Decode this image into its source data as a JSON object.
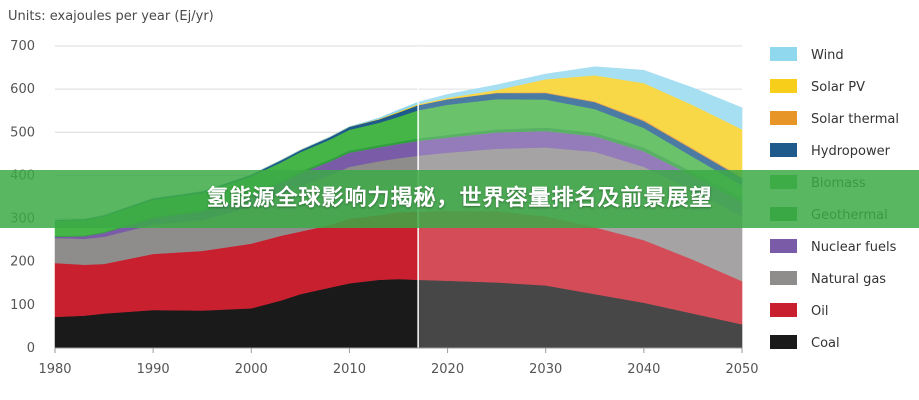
{
  "banner": {
    "text": "氢能源全球影响力揭秘，世界容量排名及前景展望"
  },
  "chart_data": {
    "type": "area",
    "title": "",
    "units_label": "Units: exajoules per year (Ej/yr)",
    "xlabel": "",
    "ylabel": "",
    "xlim": [
      1980,
      2050
    ],
    "ylim": [
      0,
      700
    ],
    "x_ticks": [
      "1980",
      "1990",
      "2000",
      "2010",
      "2020",
      "2030",
      "2040",
      "2050"
    ],
    "y_ticks": [
      "0",
      "100",
      "200",
      "300",
      "400",
      "500",
      "600",
      "700"
    ],
    "projection_start": 2017,
    "grid": true,
    "legend_position": "right",
    "x": [
      1980,
      1983,
      1985,
      1990,
      1995,
      2000,
      2003,
      2005,
      2008,
      2010,
      2013,
      2015,
      2017,
      2020,
      2025,
      2030,
      2035,
      2040,
      2045,
      2050
    ],
    "series": [
      {
        "name": "Coal",
        "color": "#1a1a1a",
        "values": [
          72,
          75,
          80,
          88,
          87,
          92,
          110,
          125,
          140,
          150,
          158,
          160,
          158,
          156,
          152,
          145,
          125,
          105,
          80,
          55
        ]
      },
      {
        "name": "Oil",
        "color": "#c8202f",
        "values": [
          125,
          118,
          115,
          130,
          138,
          150,
          150,
          145,
          145,
          150,
          150,
          155,
          158,
          162,
          165,
          160,
          155,
          145,
          125,
          100
        ]
      },
      {
        "name": "Natural gas",
        "color": "#8f8c8c",
        "values": [
          58,
          60,
          63,
          68,
          72,
          85,
          95,
          105,
          115,
          120,
          125,
          125,
          130,
          135,
          145,
          160,
          175,
          170,
          160,
          150
        ]
      },
      {
        "name": "Nuclear fuels",
        "color": "#7a5ba8",
        "values": [
          3,
          6,
          9,
          15,
          20,
          25,
          28,
          30,
          32,
          33,
          32,
          33,
          34,
          35,
          38,
          38,
          36,
          36,
          34,
          34
        ]
      },
      {
        "name": "Natural gas",
        "color": "#8f8c8c",
        "values": [
          0,
          0,
          0,
          0,
          0,
          0,
          0,
          0,
          0,
          0,
          0,
          0,
          0,
          0,
          0,
          0,
          0,
          0,
          0,
          0
        ]
      },
      {
        "name": "Geothermal",
        "color": "#2f9e3f",
        "values": [
          2,
          2,
          2,
          3,
          3,
          4,
          4,
          4,
          5,
          5,
          5,
          5,
          6,
          6,
          7,
          8,
          8,
          9,
          9,
          10
        ]
      },
      {
        "name": "Biomass",
        "color": "#45b547",
        "values": [
          35,
          36,
          37,
          40,
          40,
          42,
          43,
          45,
          46,
          48,
          52,
          58,
          65,
          70,
          70,
          65,
          55,
          45,
          35,
          28
        ]
      },
      {
        "name": "Hydropower",
        "color": "#1e5a8c",
        "values": [
          2,
          2,
          2,
          3,
          3,
          4,
          5,
          5,
          6,
          7,
          8,
          10,
          12,
          13,
          14,
          15,
          16,
          16,
          17,
          17
        ]
      },
      {
        "name": "Solar thermal",
        "color": "#e89528",
        "values": [
          0,
          0,
          0,
          0,
          0,
          0,
          0,
          0,
          0,
          0,
          0,
          0,
          0,
          0,
          1,
          2,
          2,
          3,
          3,
          3
        ]
      },
      {
        "name": "Solar PV",
        "color": "#f7cf1a",
        "values": [
          0,
          0,
          0,
          0,
          0,
          0,
          0,
          0,
          0,
          0,
          1,
          2,
          2,
          3,
          6,
          30,
          60,
          85,
          100,
          110
        ]
      },
      {
        "name": "Wind",
        "color": "#8fd8ee",
        "values": [
          0,
          0,
          0,
          0,
          0,
          0,
          0,
          0,
          0,
          0,
          2,
          4,
          5,
          8,
          12,
          12,
          20,
          30,
          40,
          50
        ]
      }
    ],
    "legend": [
      {
        "label": "Wind",
        "color": "#8fd8ee"
      },
      {
        "label": "Solar PV",
        "color": "#f7cf1a"
      },
      {
        "label": "Solar thermal",
        "color": "#e89528"
      },
      {
        "label": "Hydropower",
        "color": "#1e5a8c"
      },
      {
        "label": "Biomass",
        "color": "#45b547"
      },
      {
        "label": "Geothermal",
        "color": "#2f9e3f"
      },
      {
        "label": "Nuclear fuels",
        "color": "#7a5ba8"
      },
      {
        "label": "Natural gas",
        "color": "#8f8c8c"
      },
      {
        "label": "Oil",
        "color": "#c8202f"
      },
      {
        "label": "Coal",
        "color": "#1a1a1a"
      }
    ]
  }
}
